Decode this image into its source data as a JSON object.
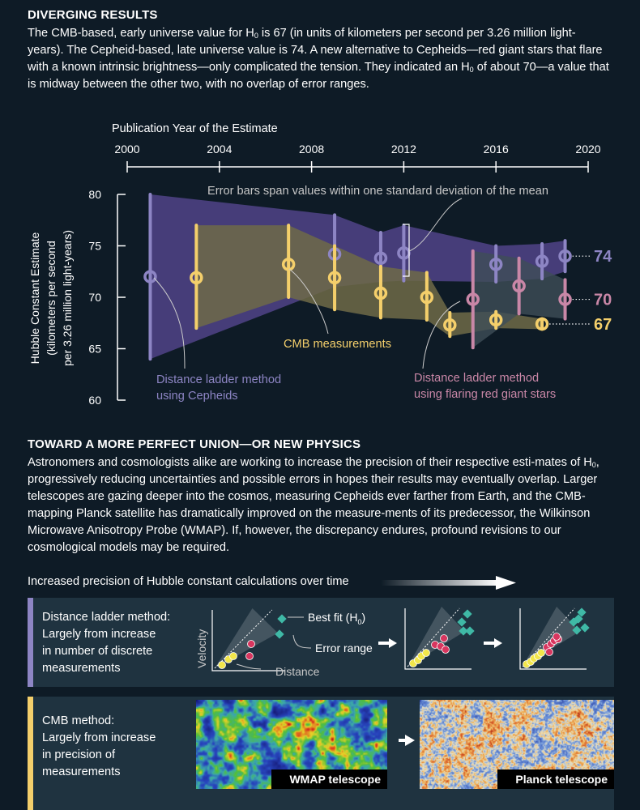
{
  "section1": {
    "title": "DIVERGING RESULTS",
    "para_a": "The CMB-based, early universe value for H",
    "para_b": " is 67 (in units of kilometers per second per 3.26 million light-years). The Cepheid-based, late universe value is 74. A new alternative to Cepheids—red giant stars that flare with a known intrinsic brightness—only complicated the tension. They indicated an H",
    "para_c": " of about 70—a value that is midway between the other two, with no overlap of error ranges.",
    "sub": "0"
  },
  "chart_data": {
    "type": "scatter",
    "title": "Publication Year of the Estimate",
    "xlabel": "Publication Year of the Estimate",
    "ylabel": [
      "Hubble Constant Estimate",
      "(kilometers per second",
      "per 3.26 million light-years)"
    ],
    "xlim": [
      2000,
      2020
    ],
    "ylim": [
      60,
      80
    ],
    "x_ticks": [
      2000,
      2004,
      2008,
      2012,
      2016,
      2020
    ],
    "y_ticks": [
      60,
      65,
      70,
      75,
      80
    ],
    "error_bar_note": "Error bars span values within one standard deviation of the mean",
    "series": [
      {
        "name": "Cepheids",
        "label": [
          "Distance ladder method",
          "using Cepheids"
        ],
        "color": "#8d85c4",
        "band": "#4a3f7d",
        "points": [
          {
            "x": 2001,
            "y": 72,
            "lo": 64,
            "hi": 80
          },
          {
            "x": 2009,
            "y": 74.2,
            "lo": 71,
            "hi": 78
          },
          {
            "x": 2011,
            "y": 73.8,
            "lo": 71.5,
            "hi": 76.3
          },
          {
            "x": 2012,
            "y": 74.3,
            "lo": 71.6,
            "hi": 77
          },
          {
            "x": 2016,
            "y": 73.2,
            "lo": 71.5,
            "hi": 75
          },
          {
            "x": 2018,
            "y": 73.5,
            "lo": 71.8,
            "hi": 75.2
          },
          {
            "x": 2019,
            "y": 74,
            "lo": 72.5,
            "hi": 75.5
          }
        ],
        "end_label": "74"
      },
      {
        "name": "CMB",
        "label": [
          "CMB measurements"
        ],
        "color": "#f4cf6b",
        "band": "#6e6a48",
        "points": [
          {
            "x": 2003,
            "y": 71.9,
            "lo": 67,
            "hi": 77
          },
          {
            "x": 2007,
            "y": 73.2,
            "lo": 70,
            "hi": 77
          },
          {
            "x": 2009,
            "y": 71.9,
            "lo": 68.8,
            "hi": 75
          },
          {
            "x": 2011,
            "y": 70.4,
            "lo": 68,
            "hi": 73
          },
          {
            "x": 2013,
            "y": 70,
            "lo": 67.8,
            "hi": 72.4
          },
          {
            "x": 2014,
            "y": 67.3,
            "lo": 66.2,
            "hi": 68.5
          },
          {
            "x": 2016,
            "y": 67.8,
            "lo": 67,
            "hi": 68.6
          },
          {
            "x": 2018,
            "y": 67.4,
            "lo": 66.9,
            "hi": 67.9
          }
        ],
        "end_label": "67"
      },
      {
        "name": "Red giants",
        "label": [
          "Distance ladder method",
          "using flaring red giant stars"
        ],
        "color": "#c987a7",
        "band": "#3e4d57",
        "points": [
          {
            "x": 2015,
            "y": 69.8,
            "lo": 65.1,
            "hi": 74.5
          },
          {
            "x": 2017,
            "y": 71.1,
            "lo": 68.4,
            "hi": 73.8
          },
          {
            "x": 2019,
            "y": 69.8,
            "lo": 67.9,
            "hi": 71.7
          }
        ],
        "end_label": "70"
      }
    ]
  },
  "section2": {
    "title": "TOWARD A MORE PERFECT UNION—OR NEW PHYSICS",
    "para_a": "Astronomers and cosmologists alike are working to increase the precision of their respective esti-mates of H",
    "para_b": ", progressively reducing uncertainties and possible errors in hopes their results may eventually overlap. Larger telescopes are gazing deeper into the cosmos, measuring Cepheids ever farther from Earth, and the CMB-mapping Planck satellite has dramatically improved on the measure-ments of its predecessor, the Wilkinson Microwave Anisotropy Probe (WMAP). If, however, the discrepancy endures, profound revisions to our cosmological models may be required.",
    "sub": "0"
  },
  "precision_header": "Increased precision of Hubble constant calculations over time",
  "panel1": {
    "lines": [
      "Distance ladder method:",
      "Largely from increase",
      "in number of discrete",
      "measurements"
    ],
    "velocity": "Velocity",
    "distance": "Distance",
    "best_fit": "Best fit (H",
    "best_fit_end": ")",
    "sub": "0",
    "error_range": "Error range",
    "color": "#8d85c4"
  },
  "panel2": {
    "lines": [
      "CMB method:",
      "Largely from increase",
      "in precision of",
      "measurements"
    ],
    "wmap": "WMAP telescope",
    "planck": "Planck telescope",
    "color": "#f4cf6b"
  }
}
